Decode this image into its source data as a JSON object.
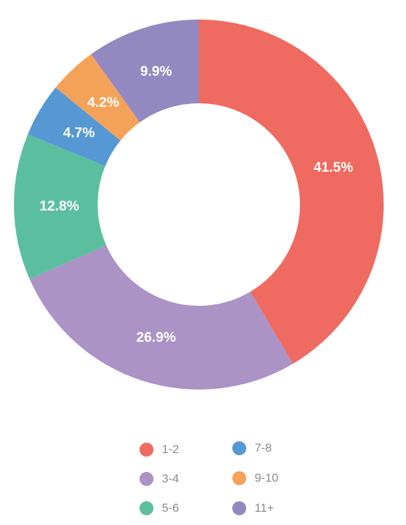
{
  "chart_data": {
    "type": "pie",
    "donut": true,
    "categories": [
      "1-2",
      "3-4",
      "5-6",
      "7-8",
      "9-10",
      "11+"
    ],
    "values": [
      41.5,
      26.9,
      12.8,
      4.7,
      4.2,
      9.9
    ],
    "labels": [
      "41.5%",
      "26.9%",
      "12.8%",
      "4.7%",
      "4.2%",
      "9.9%"
    ],
    "colors": [
      "#ef6a60",
      "#ab93c6",
      "#5bbf9f",
      "#5598d3",
      "#f4a259",
      "#9289c1"
    ],
    "legend": {
      "placement": "bottom",
      "entries": [
        "1-2",
        "7-8",
        "3-4",
        "9-10",
        "5-6",
        "11+"
      ]
    }
  }
}
